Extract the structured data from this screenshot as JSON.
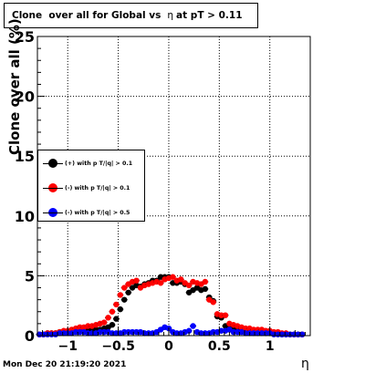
{
  "title": {
    "prefix": "Clone  over all for Global vs",
    "eta": "η",
    "suffix": "at pT > 0.11"
  },
  "footer_text": "Mon Dec 20 21:19:20 2021",
  "colors": {
    "black": "#000000",
    "red": "#ff0000",
    "blue": "#0000ff"
  },
  "chart_data": {
    "type": "scatter",
    "title": "Clone  over all for Global vs  η at pT > 0.11",
    "xlabel": "η",
    "ylabel": "Clone  over all (%)",
    "xlim": [
      -1.3,
      1.4
    ],
    "ylim": [
      0,
      25
    ],
    "grid": true,
    "legend_position": "left-middle",
    "x_ticks": [
      -1,
      -0.5,
      0,
      0.5,
      1
    ],
    "x_tick_labels": [
      "−1",
      "−0.5",
      "0",
      "0.5",
      "1"
    ],
    "y_ticks": [
      0,
      5,
      10,
      15,
      20,
      25
    ],
    "y_tick_labels": [
      "0",
      "5",
      "10",
      "15",
      "20",
      "25"
    ],
    "series": [
      {
        "name": "(+) with p T/|q| > 0.1",
        "color": "#000000",
        "x": [
          -1.28,
          -1.24,
          -1.2,
          -1.16,
          -1.12,
          -1.08,
          -1.04,
          -1.0,
          -0.96,
          -0.92,
          -0.88,
          -0.84,
          -0.8,
          -0.76,
          -0.72,
          -0.68,
          -0.64,
          -0.6,
          -0.56,
          -0.52,
          -0.48,
          -0.44,
          -0.4,
          -0.36,
          -0.32,
          -0.28,
          -0.24,
          -0.2,
          -0.16,
          -0.12,
          -0.08,
          -0.04,
          0.0,
          0.04,
          0.08,
          0.12,
          0.16,
          0.2,
          0.24,
          0.28,
          0.32,
          0.36,
          0.4,
          0.44,
          0.48,
          0.52,
          0.56,
          0.6,
          0.64,
          0.68,
          0.72,
          0.76,
          0.8,
          0.84,
          0.88,
          0.92,
          0.96,
          1.0,
          1.04,
          1.08,
          1.12,
          1.16,
          1.2,
          1.24,
          1.28,
          1.32
        ],
        "y": [
          0.1,
          0.1,
          0.2,
          0.2,
          0.2,
          0.3,
          0.3,
          0.3,
          0.3,
          0.4,
          0.4,
          0.4,
          0.5,
          0.5,
          0.5,
          0.5,
          0.6,
          0.7,
          0.9,
          1.4,
          2.2,
          3.0,
          3.6,
          4.0,
          4.2,
          4.1,
          4.3,
          4.4,
          4.6,
          4.6,
          4.9,
          4.9,
          4.9,
          4.4,
          4.4,
          4.5,
          4.3,
          3.6,
          3.8,
          4.0,
          3.8,
          3.9,
          3.2,
          2.9,
          1.6,
          1.5,
          0.8,
          0.6,
          0.6,
          0.5,
          0.4,
          0.4,
          0.3,
          0.3,
          0.3,
          0.3,
          0.2,
          0.2,
          0.2,
          0.2,
          0.1,
          0.1,
          0.1,
          0.1,
          0.1,
          0.1
        ]
      },
      {
        "name": "(-) with p T/|q| > 0.1",
        "color": "#ff0000",
        "x": [
          -1.28,
          -1.24,
          -1.2,
          -1.16,
          -1.12,
          -1.08,
          -1.04,
          -1.0,
          -0.96,
          -0.92,
          -0.88,
          -0.84,
          -0.8,
          -0.76,
          -0.72,
          -0.68,
          -0.64,
          -0.6,
          -0.56,
          -0.52,
          -0.48,
          -0.44,
          -0.4,
          -0.36,
          -0.32,
          -0.28,
          -0.24,
          -0.2,
          -0.16,
          -0.12,
          -0.08,
          -0.04,
          0.0,
          0.04,
          0.08,
          0.12,
          0.16,
          0.2,
          0.24,
          0.28,
          0.32,
          0.36,
          0.4,
          0.44,
          0.48,
          0.52,
          0.56,
          0.6,
          0.64,
          0.68,
          0.72,
          0.76,
          0.8,
          0.84,
          0.88,
          0.92,
          0.96,
          1.0,
          1.04,
          1.08,
          1.12,
          1.16,
          1.2,
          1.24,
          1.28,
          1.32
        ],
        "y": [
          0.1,
          0.1,
          0.2,
          0.2,
          0.2,
          0.3,
          0.4,
          0.4,
          0.5,
          0.6,
          0.7,
          0.7,
          0.8,
          0.8,
          0.9,
          1.0,
          1.1,
          1.5,
          2.0,
          2.6,
          3.4,
          4.0,
          4.3,
          4.5,
          4.6,
          4.0,
          4.2,
          4.3,
          4.4,
          4.5,
          4.4,
          4.7,
          4.8,
          4.9,
          4.6,
          4.7,
          4.4,
          4.2,
          4.5,
          4.4,
          4.3,
          4.5,
          3.0,
          2.8,
          1.8,
          1.7,
          1.7,
          1.0,
          0.9,
          0.8,
          0.7,
          0.6,
          0.6,
          0.5,
          0.5,
          0.5,
          0.4,
          0.4,
          0.3,
          0.3,
          0.2,
          0.2,
          0.1,
          0.1,
          0.1,
          0.1
        ]
      },
      {
        "name": "(-) with p T/|q| > 0.5",
        "color": "#0000ff",
        "x": [
          -1.28,
          -1.24,
          -1.2,
          -1.16,
          -1.12,
          -1.08,
          -1.04,
          -1.0,
          -0.96,
          -0.92,
          -0.88,
          -0.84,
          -0.8,
          -0.76,
          -0.72,
          -0.68,
          -0.64,
          -0.6,
          -0.56,
          -0.52,
          -0.48,
          -0.44,
          -0.4,
          -0.36,
          -0.32,
          -0.28,
          -0.24,
          -0.2,
          -0.16,
          -0.12,
          -0.08,
          -0.04,
          0.0,
          0.04,
          0.08,
          0.12,
          0.16,
          0.2,
          0.24,
          0.28,
          0.32,
          0.36,
          0.4,
          0.44,
          0.48,
          0.52,
          0.56,
          0.6,
          0.64,
          0.68,
          0.72,
          0.76,
          0.8,
          0.84,
          0.88,
          0.92,
          0.96,
          1.0,
          1.04,
          1.08,
          1.12,
          1.16,
          1.2,
          1.24,
          1.28,
          1.32
        ],
        "y": [
          0.1,
          0.1,
          0.1,
          0.1,
          0.1,
          0.2,
          0.2,
          0.2,
          0.2,
          0.3,
          0.3,
          0.3,
          0.2,
          0.2,
          0.2,
          0.3,
          0.3,
          0.3,
          0.2,
          0.2,
          0.2,
          0.3,
          0.3,
          0.3,
          0.3,
          0.3,
          0.2,
          0.2,
          0.2,
          0.3,
          0.5,
          0.7,
          0.6,
          0.3,
          0.2,
          0.2,
          0.3,
          0.4,
          0.8,
          0.3,
          0.2,
          0.2,
          0.2,
          0.3,
          0.3,
          0.4,
          0.4,
          0.5,
          0.3,
          0.3,
          0.3,
          0.2,
          0.2,
          0.2,
          0.2,
          0.2,
          0.2,
          0.2,
          0.1,
          0.1,
          0.1,
          0.1,
          0.1,
          0.1,
          0.1,
          0.1
        ]
      }
    ]
  }
}
